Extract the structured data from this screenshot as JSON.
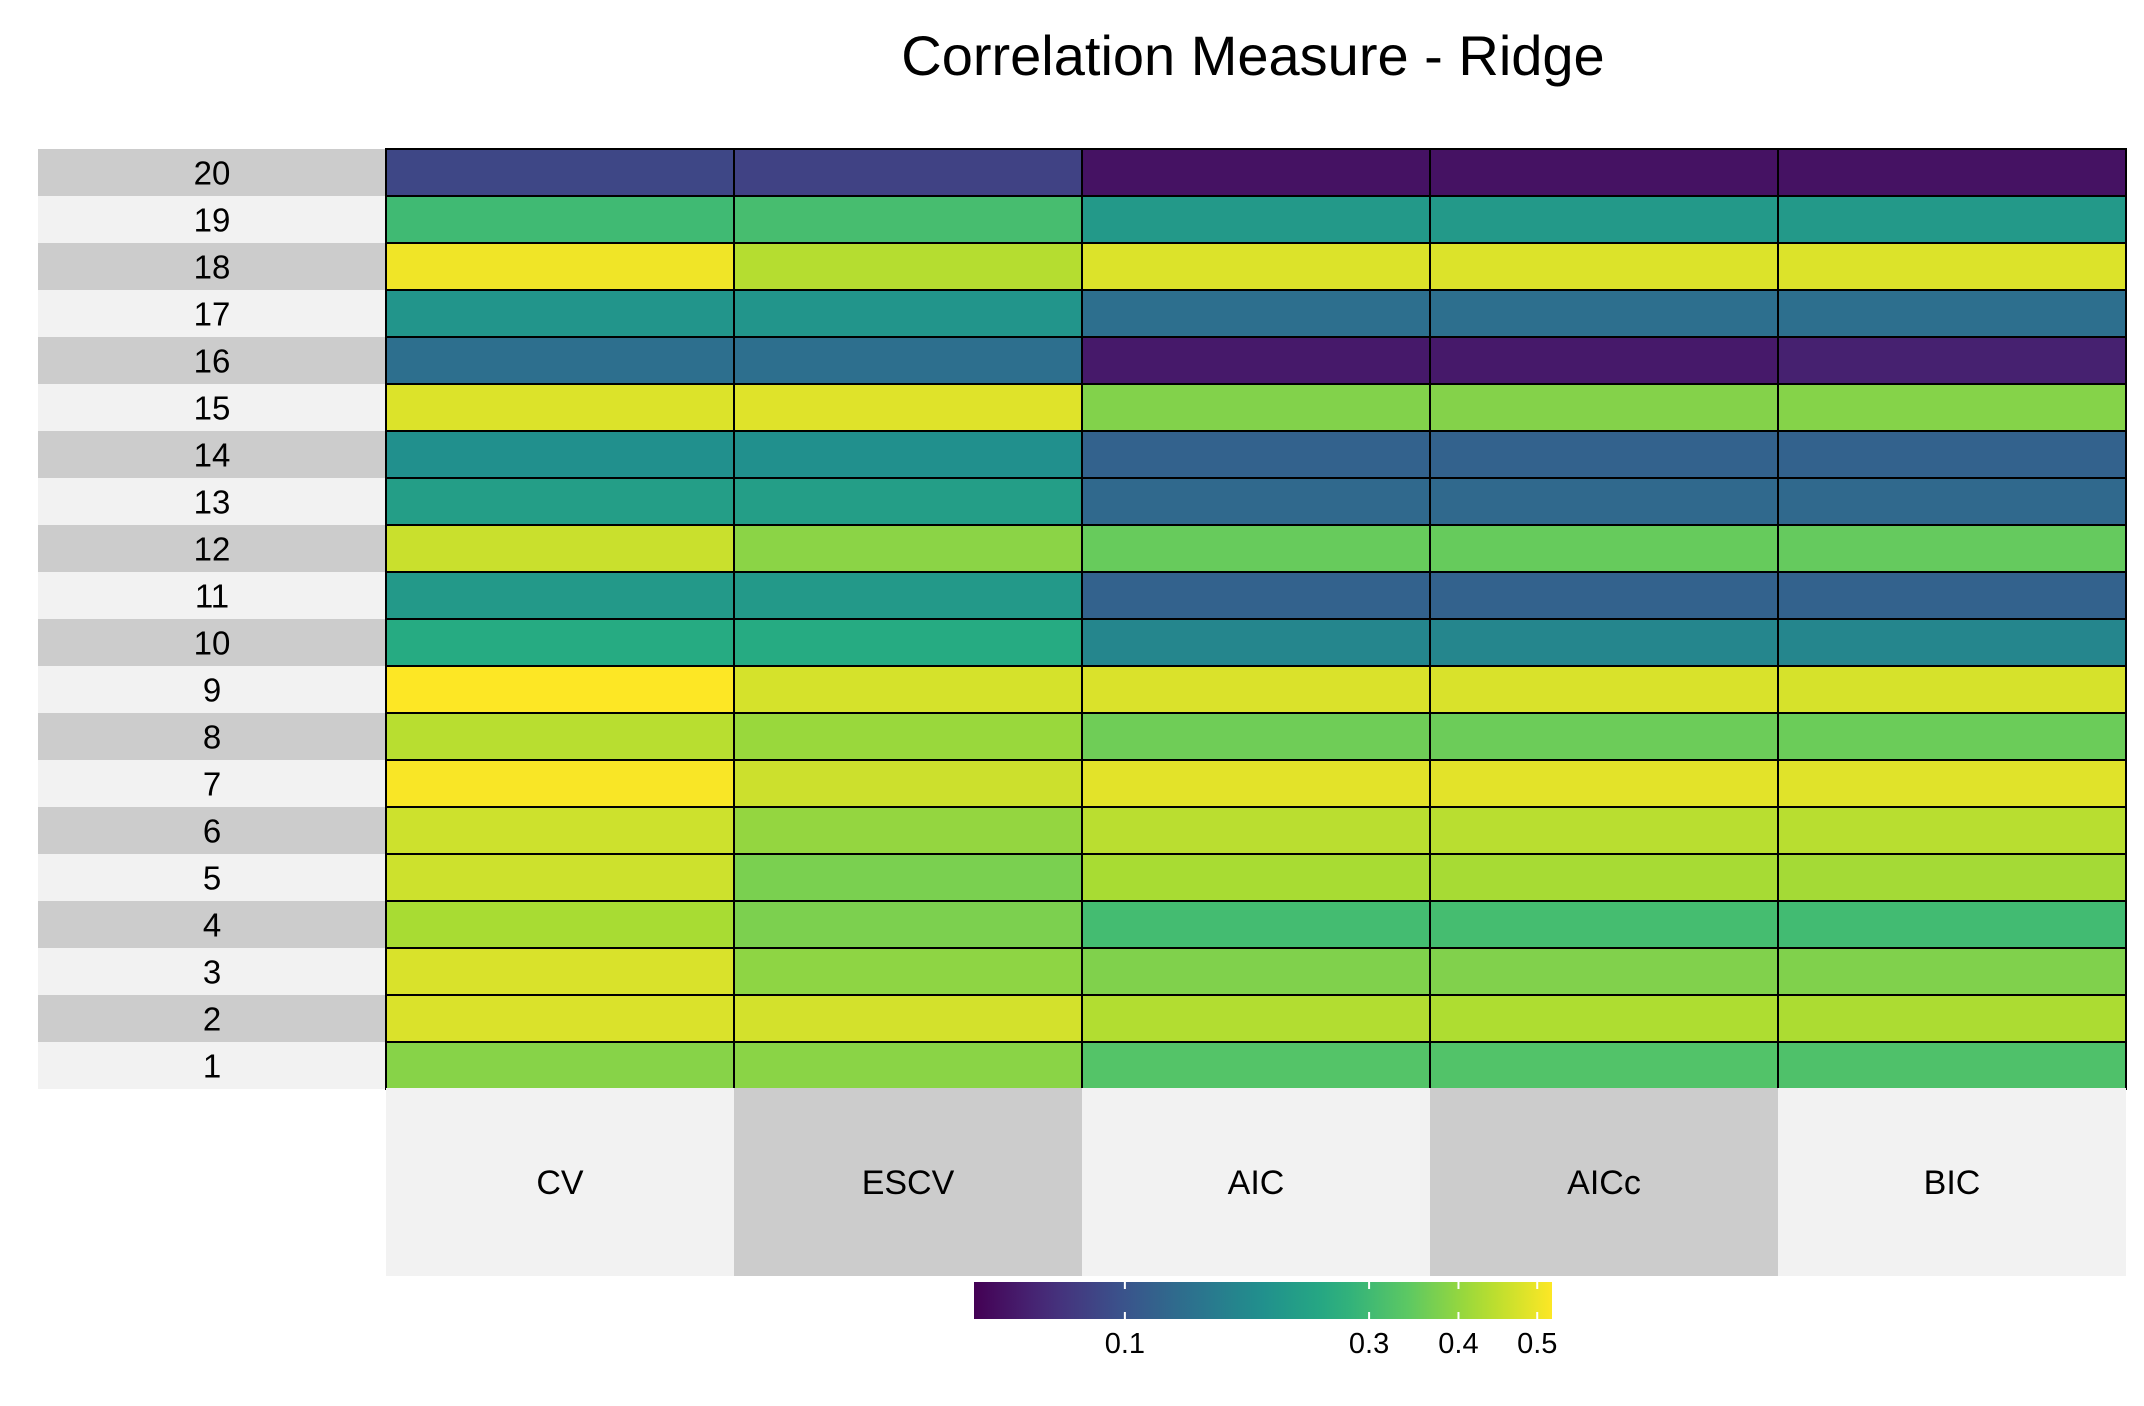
{
  "colors": {
    "band_dark": "#cccccc",
    "band_light": "#f2f2f2",
    "cell_border": "#000000",
    "colormap": "viridis"
  },
  "chart_data": {
    "type": "heatmap",
    "title": "Correlation Measure - Ridge",
    "rows": [
      "1",
      "2",
      "3",
      "4",
      "5",
      "6",
      "7",
      "8",
      "9",
      "10",
      "11",
      "12",
      "13",
      "14",
      "15",
      "16",
      "17",
      "18",
      "19",
      "20"
    ],
    "columns": [
      "CV",
      "ESCV",
      "AIC",
      "AICc",
      "BIC"
    ],
    "color_scale": {
      "type": "sqrt",
      "min": 0.03,
      "max": 0.52,
      "ticks": [
        0.1,
        0.3,
        0.4,
        0.5
      ],
      "tick_labels": [
        "0.1",
        "0.3",
        "0.4",
        "0.5"
      ]
    },
    "grid": false,
    "legend": "bottom",
    "values": [
      [
        0.387,
        0.39,
        0.329,
        0.326,
        0.322
      ],
      [
        0.479,
        0.471,
        0.435,
        0.43,
        0.428
      ],
      [
        0.478,
        0.394,
        0.379,
        0.38,
        0.379
      ],
      [
        0.424,
        0.375,
        0.306,
        0.308,
        0.303
      ],
      [
        0.464,
        0.373,
        0.424,
        0.422,
        0.419
      ],
      [
        0.464,
        0.401,
        0.443,
        0.442,
        0.441
      ],
      [
        0.515,
        0.463,
        0.489,
        0.489,
        0.486
      ],
      [
        0.441,
        0.407,
        0.361,
        0.358,
        0.357
      ],
      [
        0.52,
        0.474,
        0.479,
        0.478,
        0.475
      ],
      [
        0.26,
        0.26,
        0.18,
        0.18,
        0.18
      ],
      [
        0.22,
        0.22,
        0.12,
        0.12,
        0.12
      ],
      [
        0.46,
        0.391,
        0.353,
        0.352,
        0.35
      ],
      [
        0.23,
        0.23,
        0.13,
        0.13,
        0.13
      ],
      [
        0.2,
        0.2,
        0.12,
        0.12,
        0.12
      ],
      [
        0.482,
        0.485,
        0.381,
        0.383,
        0.385
      ],
      [
        0.14,
        0.14,
        0.045,
        0.045,
        0.05
      ],
      [
        0.21,
        0.21,
        0.14,
        0.14,
        0.14
      ],
      [
        0.505,
        0.438,
        0.481,
        0.481,
        0.481
      ],
      [
        0.3,
        0.31,
        0.22,
        0.22,
        0.22
      ],
      [
        0.085,
        0.08,
        0.04,
        0.04,
        0.04
      ]
    ]
  }
}
